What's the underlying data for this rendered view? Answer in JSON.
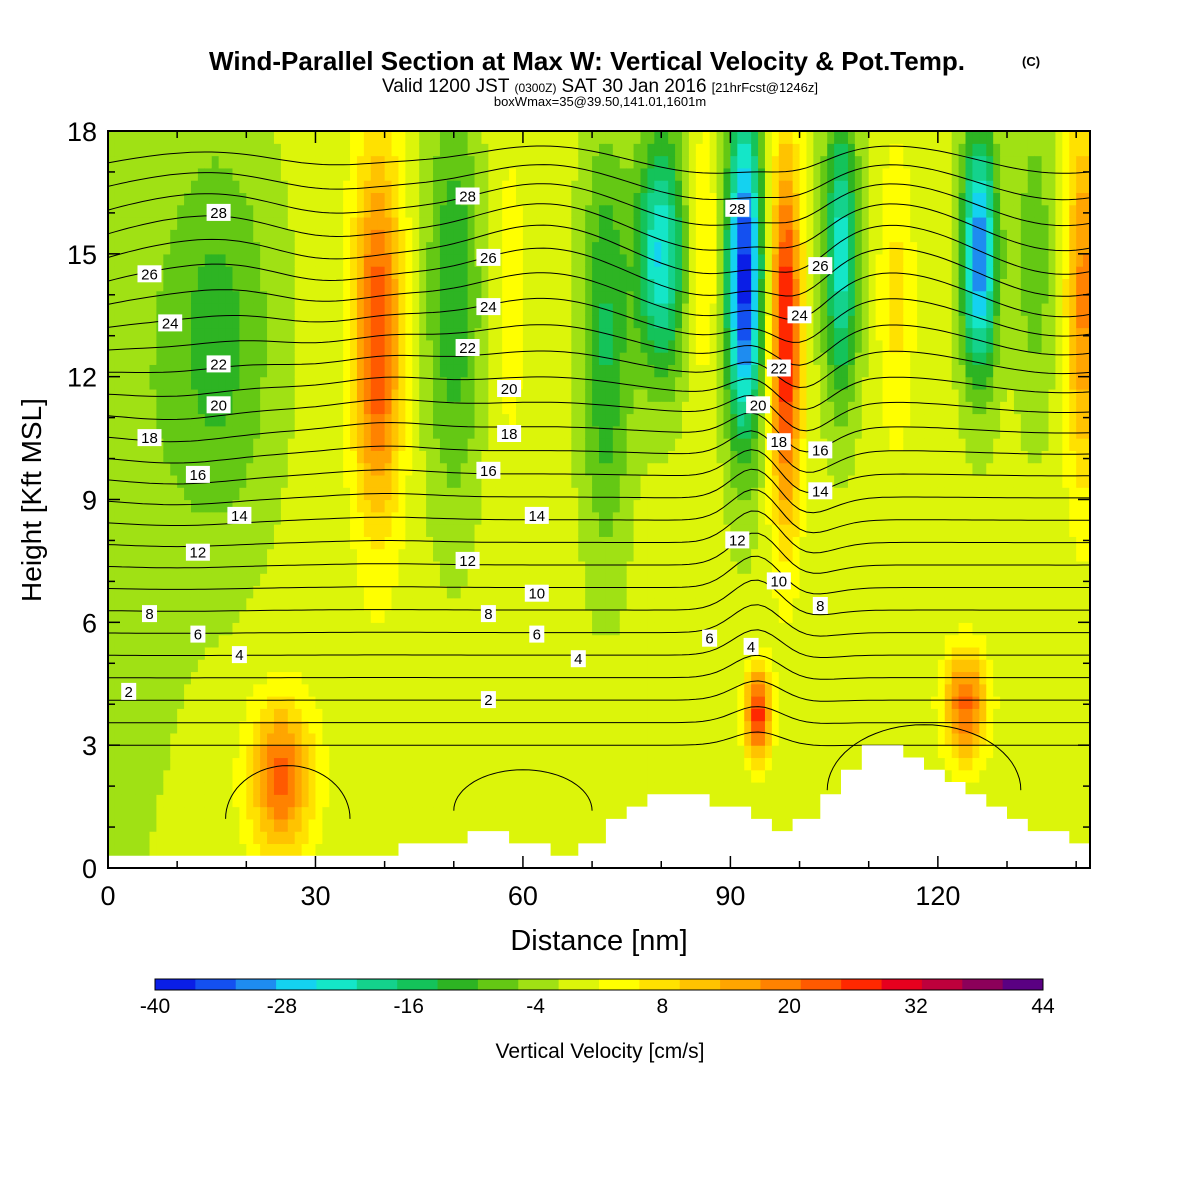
{
  "title": {
    "main": "Wind-Parallel Section at Max W: Vertical Velocity & Pot.Temp.",
    "copyright": "(C)",
    "valid_prefix": "Valid 1200 JST",
    "valid_z": "(0300Z)",
    "valid_date": "SAT 30 Jan 2016",
    "valid_fcst": "[21hrFcst@1246z]",
    "boxinfo": "boxWmax=35@39.50,141.01,1601m"
  },
  "chart_data": {
    "type": "heatmap",
    "xlabel": "Distance [nm]",
    "ylabel": "Height [Kft MSL]",
    "xlim": [
      0,
      142
    ],
    "ylim": [
      0,
      18
    ],
    "x_ticks": [
      0,
      30,
      60,
      90,
      120
    ],
    "y_ticks": [
      0,
      3,
      6,
      9,
      12,
      15,
      18
    ],
    "colorbar": {
      "label": "Vertical Velocity [cm/s]",
      "range": [
        -40,
        44
      ],
      "step": 4,
      "tick_values": [
        -40,
        -28,
        -16,
        -4,
        8,
        20,
        32,
        44
      ],
      "colors": [
        "#0a1ee6",
        "#1450f0",
        "#1e8cf0",
        "#14d2f0",
        "#14e6c8",
        "#14d28c",
        "#14c35a",
        "#2db423",
        "#64c814",
        "#a0e114",
        "#dcf50a",
        "#ffff00",
        "#ffe100",
        "#ffc300",
        "#ffa500",
        "#ff8200",
        "#ff5a00",
        "#ff2800",
        "#e6001e",
        "#be003c",
        "#8c005a",
        "#5a0082"
      ]
    },
    "w_centers": [
      {
        "x": 0,
        "z": 9,
        "w": -5,
        "sx": 10,
        "sz": 9
      },
      {
        "x": 16,
        "z": 13,
        "w": -11,
        "sx": 8,
        "sz": 5
      },
      {
        "x": 25,
        "z": 2.2,
        "w": 24,
        "sx": 4.5,
        "sz": 1.8
      },
      {
        "x": 39,
        "z": 13,
        "w": 27,
        "sx": 3.5,
        "sz": 4.5
      },
      {
        "x": 50,
        "z": 14,
        "w": -13,
        "sx": 4,
        "sz": 5
      },
      {
        "x": 58,
        "z": 14,
        "w": 4,
        "sx": 3,
        "sz": 5
      },
      {
        "x": 72,
        "z": 13,
        "w": -14,
        "sx": 3.5,
        "sz": 5
      },
      {
        "x": 80,
        "z": 15,
        "w": -26,
        "sx": 3.5,
        "sz": 3
      },
      {
        "x": 86,
        "z": 15,
        "w": 8,
        "sx": 2.5,
        "sz": 3
      },
      {
        "x": 92,
        "z": 14.5,
        "w": -40,
        "sx": 2.6,
        "sz": 4
      },
      {
        "x": 94,
        "z": 3.8,
        "w": 30,
        "sx": 1.8,
        "sz": 1.1
      },
      {
        "x": 98,
        "z": 13,
        "w": 32,
        "sx": 2.2,
        "sz": 4.5
      },
      {
        "x": 106,
        "z": 15,
        "w": -24,
        "sx": 2.5,
        "sz": 3.5
      },
      {
        "x": 114,
        "z": 14,
        "w": 8,
        "sx": 2.5,
        "sz": 3.5
      },
      {
        "x": 124,
        "z": 4,
        "w": 24,
        "sx": 3,
        "sz": 1.3
      },
      {
        "x": 126,
        "z": 15,
        "w": -34,
        "sx": 2.5,
        "sz": 3
      },
      {
        "x": 134,
        "z": 15,
        "w": -8,
        "sx": 3,
        "sz": 4
      },
      {
        "x": 141,
        "z": 14,
        "w": 20,
        "sx": 2.5,
        "sz": 4.5
      }
    ],
    "terrain": [
      [
        0,
        0.3
      ],
      [
        42,
        0.3
      ],
      [
        42,
        0.6
      ],
      [
        52,
        0.6
      ],
      [
        52,
        0.9
      ],
      [
        58,
        0.9
      ],
      [
        58,
        0.6
      ],
      [
        64,
        0.6
      ],
      [
        64,
        0.3
      ],
      [
        68,
        0.3
      ],
      [
        68,
        0.6
      ],
      [
        72,
        0.6
      ],
      [
        72,
        1.2
      ],
      [
        75,
        1.2
      ],
      [
        75,
        1.5
      ],
      [
        78,
        1.5
      ],
      [
        78,
        1.8
      ],
      [
        87,
        1.8
      ],
      [
        87,
        1.5
      ],
      [
        93,
        1.5
      ],
      [
        93,
        1.2
      ],
      [
        96,
        1.2
      ],
      [
        96,
        0.9
      ],
      [
        99,
        0.9
      ],
      [
        99,
        1.2
      ],
      [
        103,
        1.2
      ],
      [
        103,
        1.8
      ],
      [
        106,
        1.8
      ],
      [
        106,
        2.4
      ],
      [
        109,
        2.4
      ],
      [
        109,
        3.0
      ],
      [
        115,
        3.0
      ],
      [
        115,
        2.7
      ],
      [
        118,
        2.7
      ],
      [
        118,
        2.4
      ],
      [
        121,
        2.4
      ],
      [
        121,
        2.1
      ],
      [
        124,
        2.1
      ],
      [
        124,
        1.8
      ],
      [
        127,
        1.8
      ],
      [
        127,
        1.5
      ],
      [
        130,
        1.5
      ],
      [
        130,
        1.2
      ],
      [
        133,
        1.2
      ],
      [
        133,
        0.9
      ],
      [
        139,
        0.9
      ],
      [
        139,
        0.6
      ],
      [
        142,
        0.6
      ]
    ],
    "theta_levels": [
      2,
      3,
      4,
      5,
      6,
      7,
      8,
      9,
      10,
      11,
      12,
      13,
      14,
      15,
      16,
      17,
      18,
      19,
      20,
      21,
      22,
      23,
      24,
      25,
      26,
      27,
      28
    ],
    "theta_label_values": [
      2,
      4,
      6,
      8,
      10,
      12,
      14,
      16,
      18,
      20,
      22,
      24,
      26,
      28
    ],
    "contour_labels": [
      {
        "x": 3,
        "z": 4.3,
        "label": "2"
      },
      {
        "x": 55,
        "z": 4.1,
        "label": "2"
      },
      {
        "x": 19,
        "z": 5.2,
        "label": "4"
      },
      {
        "x": 68,
        "z": 5.1,
        "label": "4"
      },
      {
        "x": 93,
        "z": 5.4,
        "label": "4"
      },
      {
        "x": 13,
        "z": 5.7,
        "label": "6"
      },
      {
        "x": 62,
        "z": 5.7,
        "label": "6"
      },
      {
        "x": 87,
        "z": 5.6,
        "label": "6"
      },
      {
        "x": 6,
        "z": 6.2,
        "label": "8"
      },
      {
        "x": 55,
        "z": 6.2,
        "label": "8"
      },
      {
        "x": 103,
        "z": 6.4,
        "label": "8"
      },
      {
        "x": 62,
        "z": 6.7,
        "label": "10"
      },
      {
        "x": 97,
        "z": 7.0,
        "label": "10"
      },
      {
        "x": 13,
        "z": 7.7,
        "label": "12"
      },
      {
        "x": 52,
        "z": 7.5,
        "label": "12"
      },
      {
        "x": 91,
        "z": 8.0,
        "label": "12"
      },
      {
        "x": 19,
        "z": 8.6,
        "label": "14"
      },
      {
        "x": 62,
        "z": 8.6,
        "label": "14"
      },
      {
        "x": 103,
        "z": 9.2,
        "label": "14"
      },
      {
        "x": 13,
        "z": 9.6,
        "label": "16"
      },
      {
        "x": 55,
        "z": 9.7,
        "label": "16"
      },
      {
        "x": 103,
        "z": 10.2,
        "label": "16"
      },
      {
        "x": 6,
        "z": 10.5,
        "label": "18"
      },
      {
        "x": 58,
        "z": 10.6,
        "label": "18"
      },
      {
        "x": 97,
        "z": 10.4,
        "label": "18"
      },
      {
        "x": 16,
        "z": 11.3,
        "label": "20"
      },
      {
        "x": 58,
        "z": 11.7,
        "label": "20"
      },
      {
        "x": 94,
        "z": 11.3,
        "label": "20"
      },
      {
        "x": 16,
        "z": 12.3,
        "label": "22"
      },
      {
        "x": 52,
        "z": 12.7,
        "label": "22"
      },
      {
        "x": 97,
        "z": 12.2,
        "label": "22"
      },
      {
        "x": 9,
        "z": 13.3,
        "label": "24"
      },
      {
        "x": 55,
        "z": 13.7,
        "label": "24"
      },
      {
        "x": 100,
        "z": 13.5,
        "label": "24"
      },
      {
        "x": 6,
        "z": 14.5,
        "label": "26"
      },
      {
        "x": 55,
        "z": 14.9,
        "label": "26"
      },
      {
        "x": 103,
        "z": 14.7,
        "label": "26"
      },
      {
        "x": 16,
        "z": 16.0,
        "label": "28"
      },
      {
        "x": 52,
        "z": 16.4,
        "label": "28"
      },
      {
        "x": 91,
        "z": 16.1,
        "label": "28"
      }
    ]
  }
}
